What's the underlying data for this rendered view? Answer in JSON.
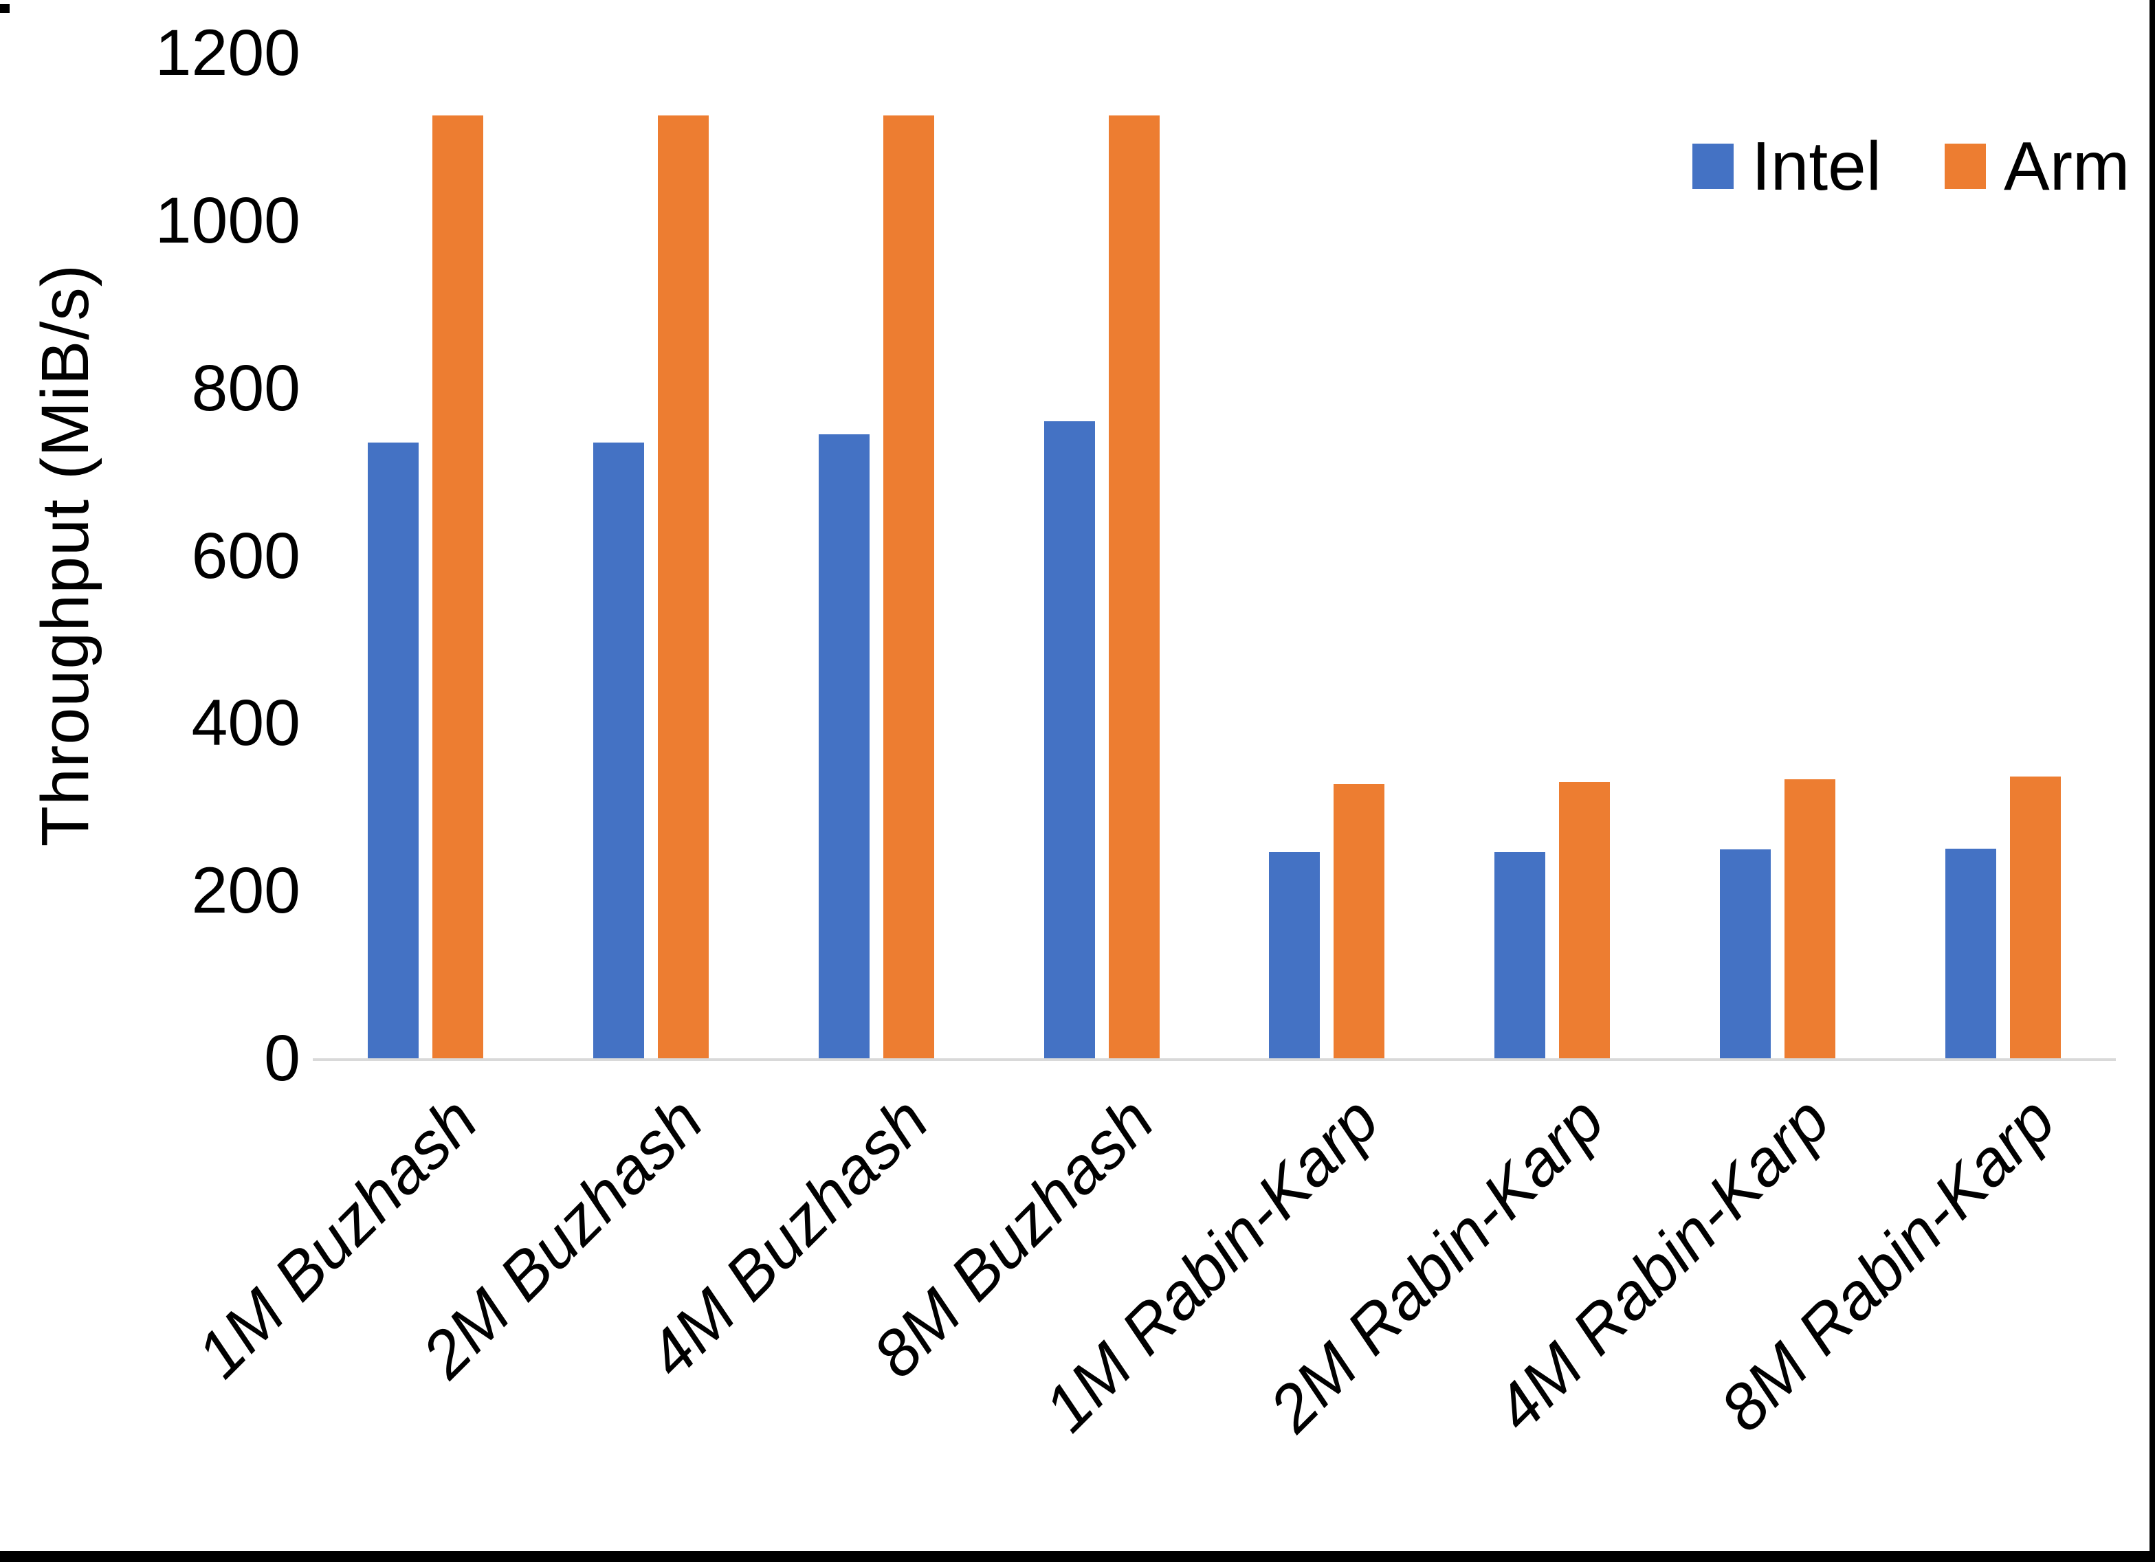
{
  "chart_data": {
    "type": "bar",
    "title": "",
    "xlabel": "",
    "ylabel": "Throughput (MiB/s)",
    "ylim": [
      0,
      1200
    ],
    "yticks": [
      0,
      200,
      400,
      600,
      800,
      1000,
      1200
    ],
    "grid": false,
    "legend_position": "top-right",
    "categories": [
      "1M Buzhash",
      "2M Buzhash",
      "4M Buzhash",
      "8M Buzhash",
      "1M Rabin-Karp",
      "2M Rabin-Karp",
      "4M Rabin-Karp",
      "8M Rabin-Karp"
    ],
    "series": [
      {
        "name": "Intel",
        "color": "#4472C4",
        "values": [
          735,
          735,
          745,
          760,
          246,
          246,
          249,
          250
        ]
      },
      {
        "name": "Arm",
        "color": "#ED7D31",
        "values": [
          1125,
          1125,
          1125,
          1125,
          327,
          330,
          333,
          336
        ]
      }
    ],
    "colors": {
      "axis_line": "#d9d9d9",
      "text": "#000000",
      "background": "#ffffff"
    }
  }
}
